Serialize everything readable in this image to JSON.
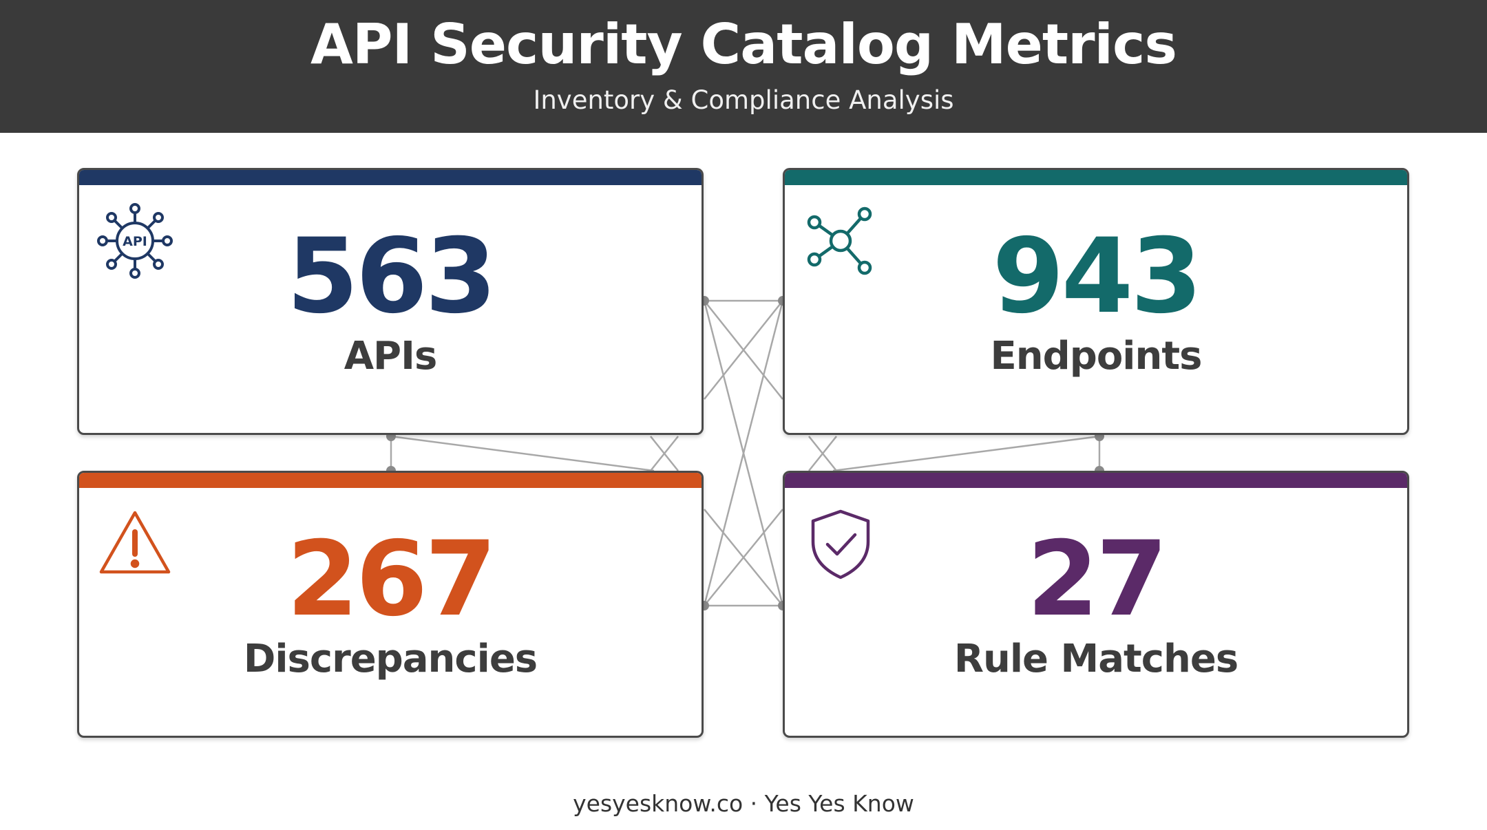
{
  "header": {
    "title": "API Security Catalog Metrics",
    "subtitle": "Inventory & Compliance Analysis"
  },
  "cards": [
    {
      "value": "563",
      "label": "APIs",
      "color": "#1f3864",
      "icon": "api-network-icon"
    },
    {
      "value": "943",
      "label": "Endpoints",
      "color": "#136a6a",
      "icon": "network-nodes-icon"
    },
    {
      "value": "267",
      "label": "Discrepancies",
      "color": "#d2521d",
      "icon": "warning-triangle-icon"
    },
    {
      "value": "27",
      "label": "Rule Matches",
      "color": "#5b2a68",
      "icon": "shield-check-icon"
    }
  ],
  "footer": {
    "text": "yesyesknow.co · Yes Yes Know"
  },
  "connector_color": "#a8a8a8"
}
